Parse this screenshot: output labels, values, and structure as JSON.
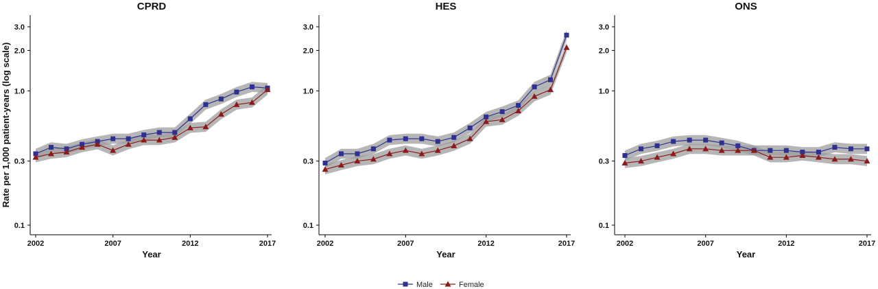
{
  "chart_data": {
    "type": "line",
    "ylabel": "Rate per 1,000 patient-years (log scale)",
    "xlabel": "Year",
    "y_scale": "log",
    "ylim": [
      0.09,
      3.6
    ],
    "xlim": [
      2002,
      2017
    ],
    "xticks": [
      "2002",
      "2007",
      "2012",
      "2017"
    ],
    "yticks": [
      "0.1",
      "0.3",
      "1.0",
      "2.0",
      "3.0"
    ],
    "grid": false,
    "legend": {
      "position": "bottom",
      "entries": [
        "Male",
        "Female"
      ]
    },
    "colors": {
      "Male": "#2e3192",
      "Female": "#8b1a1a",
      "ci_band": "#9e9e9e"
    },
    "x": [
      2002,
      2003,
      2004,
      2005,
      2006,
      2007,
      2008,
      2009,
      2010,
      2011,
      2012,
      2013,
      2014,
      2015,
      2016,
      2017
    ],
    "panels": [
      {
        "title": "CPRD",
        "series": [
          {
            "name": "Male",
            "marker": "square",
            "values": [
              0.34,
              0.38,
              0.37,
              0.4,
              0.42,
              0.44,
              0.44,
              0.47,
              0.49,
              0.49,
              0.62,
              0.79,
              0.87,
              0.98,
              1.07,
              1.05
            ]
          },
          {
            "name": "Female",
            "marker": "triangle",
            "values": [
              0.32,
              0.34,
              0.35,
              0.38,
              0.4,
              0.36,
              0.4,
              0.43,
              0.43,
              0.45,
              0.53,
              0.54,
              0.67,
              0.79,
              0.82,
              1.02
            ]
          }
        ]
      },
      {
        "title": "HES",
        "series": [
          {
            "name": "Male",
            "marker": "square",
            "values": [
              0.29,
              0.34,
              0.34,
              0.37,
              0.43,
              0.44,
              0.44,
              0.42,
              0.45,
              0.53,
              0.64,
              0.7,
              0.78,
              1.07,
              1.21,
              2.6
            ]
          },
          {
            "name": "Female",
            "marker": "triangle",
            "values": [
              0.26,
              0.28,
              0.3,
              0.31,
              0.34,
              0.36,
              0.34,
              0.36,
              0.39,
              0.44,
              0.59,
              0.61,
              0.71,
              0.91,
              1.02,
              2.1
            ]
          }
        ]
      },
      {
        "title": "ONS",
        "series": [
          {
            "name": "Male",
            "marker": "square",
            "values": [
              0.33,
              0.37,
              0.39,
              0.42,
              0.43,
              0.43,
              0.41,
              0.39,
              0.36,
              0.36,
              0.36,
              0.35,
              0.35,
              0.38,
              0.37,
              0.37
            ]
          },
          {
            "name": "Female",
            "marker": "triangle",
            "values": [
              0.29,
              0.3,
              0.32,
              0.34,
              0.37,
              0.37,
              0.36,
              0.36,
              0.36,
              0.32,
              0.32,
              0.33,
              0.32,
              0.31,
              0.31,
              0.3
            ]
          }
        ]
      }
    ]
  }
}
